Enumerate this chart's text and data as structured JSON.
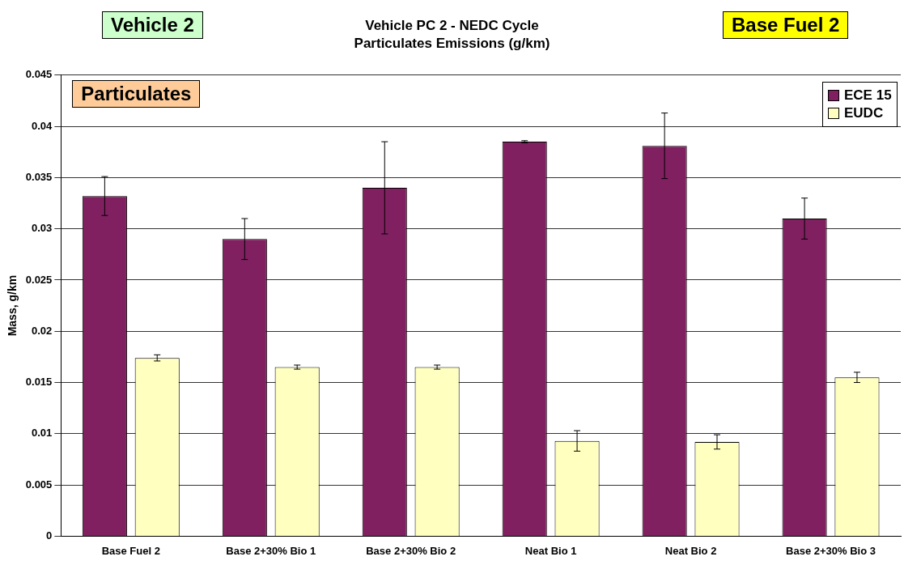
{
  "chart_data": {
    "type": "bar",
    "title": "Vehicle PC 2 - NEDC Cycle",
    "subtitle": "Particulates Emissions (g/km)",
    "ylabel": "Mass, g/km",
    "categories": [
      "Base Fuel 2",
      "Base 2+30% Bio 1",
      "Base 2+30% Bio 2",
      "Neat Bio 1",
      "Neat Bio 2",
      "Base 2+30% Bio 3"
    ],
    "series": [
      {
        "name": "ECE 15",
        "color": "#802060",
        "values": [
          0.0332,
          0.029,
          0.034,
          0.0385,
          0.0381,
          0.031
        ],
        "errors": [
          0.0019,
          0.002,
          0.0045,
          0.0001,
          0.0032,
          0.002
        ]
      },
      {
        "name": "EUDC",
        "color": "#ffffc0",
        "values": [
          0.0174,
          0.0165,
          0.0165,
          0.0093,
          0.0092,
          0.0155
        ],
        "errors": [
          0.0003,
          0.0002,
          0.0002,
          0.001,
          0.0007,
          0.0005
        ]
      }
    ],
    "ylim": [
      0,
      0.045
    ],
    "yticks": [
      0,
      0.005,
      0.01,
      0.015,
      0.02,
      0.025,
      0.03,
      0.035,
      0.04,
      0.045
    ],
    "grid": "y",
    "legend": "top right",
    "annotations": [
      "Vehicle 2",
      "Base Fuel 2",
      "Particulates"
    ]
  }
}
